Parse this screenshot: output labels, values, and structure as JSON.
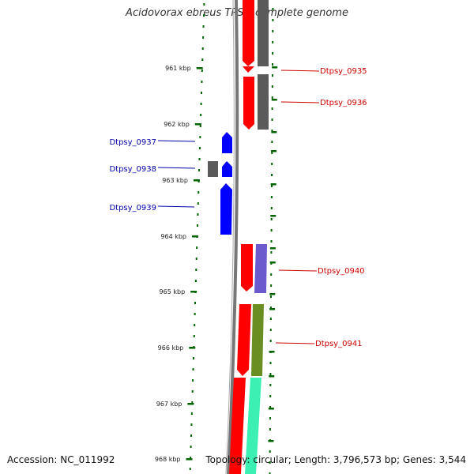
{
  "title": "Acidovorax ebreus TPSY, complete genome",
  "footer": {
    "accession": "Accession: NC_011992",
    "summary": "Topology: circular; Length: 3,796,573 bp; Genes: 3,544"
  },
  "colors": {
    "forward_label": "#cc0000",
    "reverse_label": "#0000aa",
    "ruler_tick": "#006400",
    "backbone": "#777777",
    "cds_red": "#ff0000",
    "cds_blue": "#0000ff",
    "gray": "#5a5a5a",
    "purple": "#6a5acd",
    "olive": "#6b8e23",
    "aquamarine": "#3cf0b4"
  },
  "ruler": [
    {
      "label": "961 kbp",
      "pos_kbp": 961
    },
    {
      "label": "962 kbp",
      "pos_kbp": 962
    },
    {
      "label": "963 kbp",
      "pos_kbp": 963
    },
    {
      "label": "964 kbp",
      "pos_kbp": 964
    },
    {
      "label": "965 kbp",
      "pos_kbp": 965
    },
    {
      "label": "966 kbp",
      "pos_kbp": 966
    },
    {
      "label": "967 kbp",
      "pos_kbp": 967
    },
    {
      "label": "968 kbp",
      "pos_kbp": 968
    }
  ],
  "gene_labels": [
    {
      "text": "Dtpsy_0935",
      "strand": "forward"
    },
    {
      "text": "Dtpsy_0936",
      "strand": "forward"
    },
    {
      "text": "Dtpsy_0937",
      "strand": "reverse"
    },
    {
      "text": "Dtpsy_0938",
      "strand": "reverse"
    },
    {
      "text": "Dtpsy_0939",
      "strand": "reverse"
    },
    {
      "text": "Dtpsy_0940",
      "strand": "forward"
    },
    {
      "text": "Dtpsy_0941",
      "strand": "forward"
    }
  ]
}
